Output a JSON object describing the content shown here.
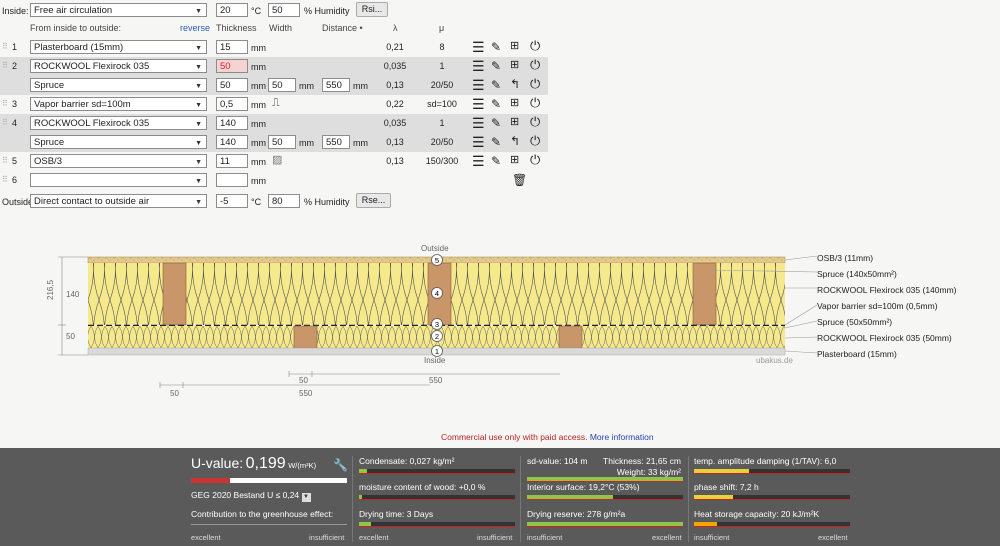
{
  "inside": {
    "label": "Inside:",
    "condition": "Free air circulation",
    "temp": "20",
    "temp_unit": "°C",
    "humidity": "50",
    "humidity_unit": "% Humidity",
    "button": "Rsi..."
  },
  "header": {
    "from_label": "From inside to outside:",
    "reverse": "reverse",
    "thickness": "Thickness",
    "width": "Width",
    "distance": "Distance •",
    "lambda": "λ",
    "mu": "μ"
  },
  "layers": [
    {
      "index": "1",
      "material": "Plasterboard (15mm)",
      "thickness": "15",
      "unit": "mm",
      "lambda": "0,21",
      "mu": "8",
      "shaded": false
    },
    {
      "index": "2",
      "material": "ROCKWOOL Flexirock 035",
      "thickness": "50",
      "unit": "mm",
      "lambda": "0,035",
      "mu": "1",
      "shaded": true,
      "warn": true
    },
    {
      "index": "",
      "material": "Spruce",
      "thickness": "50",
      "unit": "mm",
      "width": "50",
      "width_unit": "mm",
      "distance": "550",
      "distance_unit": "mm",
      "lambda": "0,13",
      "mu": "20/50",
      "shaded": true
    },
    {
      "index": "3",
      "material": "Vapor barrier sd=100m",
      "thickness": "0,5",
      "unit": "mm",
      "lambda": "0,22",
      "mu": "sd=100",
      "shaded": false
    },
    {
      "index": "4",
      "material": "ROCKWOOL Flexirock 035",
      "thickness": "140",
      "unit": "mm",
      "lambda": "0,035",
      "mu": "1",
      "shaded": true
    },
    {
      "index": "",
      "material": "Spruce",
      "thickness": "140",
      "unit": "mm",
      "width": "50",
      "width_unit": "mm",
      "distance": "550",
      "distance_unit": "mm",
      "lambda": "0,13",
      "mu": "20/50",
      "shaded": true
    },
    {
      "index": "5",
      "material": "OSB/3",
      "thickness": "11",
      "unit": "mm",
      "lambda": "0,13",
      "mu": "150/300",
      "shaded": false
    },
    {
      "index": "6",
      "material": "",
      "thickness": "",
      "unit": "mm",
      "lambda": "",
      "mu": "",
      "shaded": false
    }
  ],
  "outside": {
    "label": "Outside",
    "condition": "Direct contact to outside air",
    "temp": "-5",
    "temp_unit": "°C",
    "humidity": "80",
    "humidity_unit": "% Humidity",
    "button": "Rse..."
  },
  "diagram": {
    "outside_label": "Outside",
    "inside_label": "Inside",
    "watermark": "ubakus.de",
    "dim_total": "216,5",
    "dim_140": "140",
    "dim_50": "50",
    "bottom_dims": [
      "50",
      "550",
      "50",
      "550"
    ],
    "markers": [
      "1",
      "2",
      "3",
      "4",
      "5"
    ],
    "legend": [
      "OSB/3 (11mm)",
      "Spruce (140x50mm²)",
      "ROCKWOOL Flexirock 035 (140mm)",
      "Vapor barrier sd=100m (0,5mm)",
      "Spruce (50x50mm²)",
      "ROCKWOOL Flexirock 035 (50mm)",
      "Plasterboard (15mm)"
    ]
  },
  "notice": {
    "text": "Commercial use only with paid access.",
    "link": "More information"
  },
  "footer": {
    "uvalue_label": "U-value:",
    "uvalue": "0,199",
    "uvalue_unit": "W/(m²K)",
    "standard": "GEG 2020 Bestand U ≤ 0,24",
    "greenhouse": "Contribution to the greenhouse effect:",
    "excellent": "excellent",
    "insufficient": "insufficient",
    "condensate": "Condensate: 0,027 kg/m²",
    "moisture": "moisture content of wood: +0,0 %",
    "drying_time": "Drying time: 3 Days",
    "sd_value": "sd-value: 104 m",
    "thickness": "Thickness: 21,65 cm",
    "weight": "Weight: 33 kg/m²",
    "interior_surface": "Interior surface: 19,2°C (53%)",
    "drying_reserve": "Drying reserve: 278 g/m²a",
    "temp_damping": "temp. amplitude damping (1/TAV): 6,0",
    "phase_shift": "phase shift: 7,2 h",
    "heat_storage": "Heat storage capacity: 20 kJ/m²K",
    "levels": {
      "uvalue": 0.25,
      "condensate": 0.05,
      "moisture": 0.02,
      "drying_time": 0.08,
      "interior_surface": 0.55,
      "drying_reserve": 1.0,
      "sd_green": 1.0,
      "temp_damping": 0.35,
      "phase_shift": 0.25,
      "heat_storage": 0.15
    }
  }
}
